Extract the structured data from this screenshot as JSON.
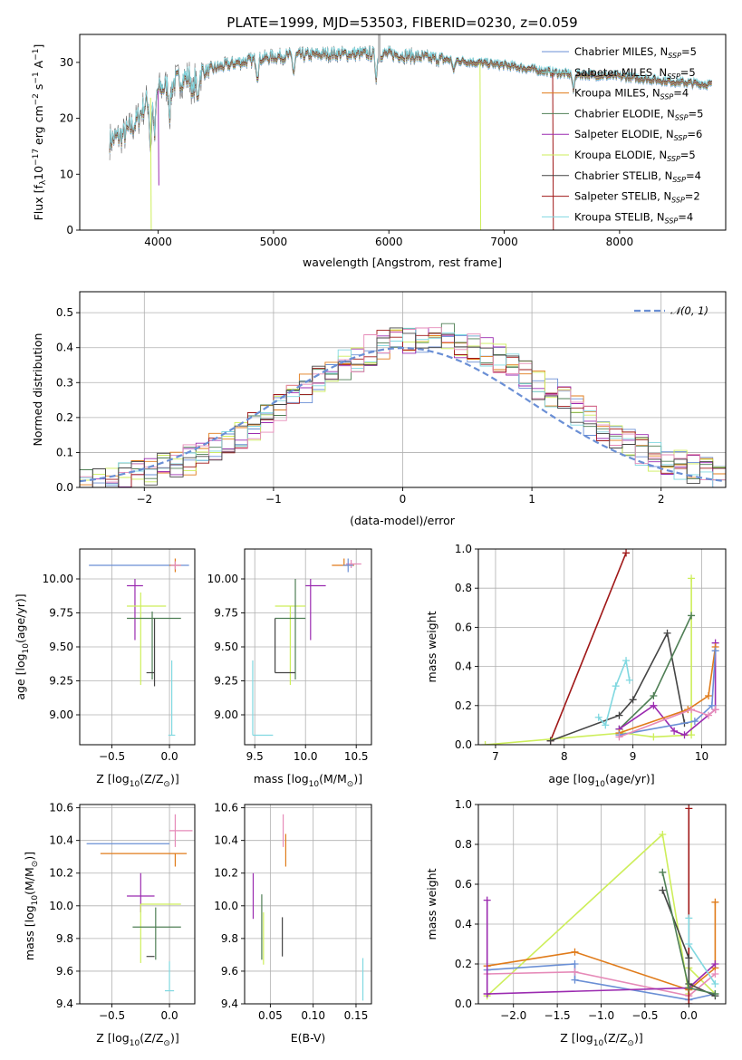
{
  "title": "PLATE=1999, MJD=53503, FIBERID=0230, z=0.059",
  "colors": {
    "chabrier_miles": "#6a8fd5",
    "salpeter_miles": "#7fe0e0",
    "kroupa_miles": "#e07b1a",
    "chabrier_elodie": "#4f7f55",
    "salpeter_elodie": "#9b2bb0",
    "kroupa_elodie": "#cdee5a",
    "chabrier_stelib": "#444444",
    "salpeter_stelib": "#a01818",
    "kroupa_stelib": "#80d8e0",
    "pink": "#e68ab8",
    "grid": "#b0b0b0"
  },
  "chart_data": [
    {
      "type": "line",
      "id": "spectrum",
      "xlabel": "wavelength [Angstrom, rest frame]",
      "ylabel_parts": [
        "Flux [f",
        "λ",
        "10",
        "−17",
        " erg cm",
        "−2",
        " s",
        "−1",
        " A",
        "−1",
        "]"
      ],
      "xlim": [
        3320,
        8920
      ],
      "ylim": [
        0,
        35
      ],
      "xticks": [
        4000,
        5000,
        6000,
        7000,
        8000
      ],
      "yticks": [
        0,
        10,
        20,
        30
      ],
      "legend_position": "top-right",
      "series": [
        {
          "name": "Chabrier MILES",
          "nssp": "5",
          "color": "#6a8fd5"
        },
        {
          "name": "Salpeter MILES",
          "nssp": "5",
          "color": "#7fe0e0"
        },
        {
          "name": "Kroupa MILES",
          "nssp": "4",
          "color": "#e07b1a"
        },
        {
          "name": "Chabrier ELODIE",
          "nssp": "5",
          "color": "#4f7f55"
        },
        {
          "name": "Salpeter ELODIE",
          "nssp": "6",
          "color": "#9b2bb0"
        },
        {
          "name": "Kroupa ELODIE",
          "nssp": "5",
          "color": "#cdee5a"
        },
        {
          "name": "Chabrier STELIB",
          "nssp": "4",
          "color": "#444444"
        },
        {
          "name": "Salpeter STELIB",
          "nssp": "2",
          "color": "#a01818"
        },
        {
          "name": "Kroupa STELIB",
          "nssp": "4",
          "color": "#80d8e0"
        }
      ],
      "nssp_label": "N",
      "nssp_sub": "SSP",
      "continuum": [
        [
          3580,
          16
        ],
        [
          3700,
          17
        ],
        [
          3800,
          19
        ],
        [
          3900,
          23
        ],
        [
          4000,
          25
        ],
        [
          4100,
          26
        ],
        [
          4200,
          27
        ],
        [
          4300,
          27.5
        ],
        [
          4500,
          29
        ],
        [
          4700,
          30
        ],
        [
          5000,
          31
        ],
        [
          5500,
          31.5
        ],
        [
          6000,
          31.5
        ],
        [
          6500,
          30.5
        ],
        [
          7000,
          29.5
        ],
        [
          7500,
          28
        ],
        [
          8000,
          27.5
        ],
        [
          8500,
          26.5
        ],
        [
          8800,
          26
        ]
      ],
      "features": [
        {
          "x": 3934,
          "y": 0,
          "color": "#cdee5a"
        },
        {
          "x": 4000,
          "y": 8,
          "color": "#9b2bb0"
        },
        {
          "x": 6790,
          "y": 0,
          "color": "#cdee5a"
        },
        {
          "x": 7420,
          "y": 0,
          "color": "#a01818"
        }
      ]
    },
    {
      "type": "step",
      "id": "residuals",
      "xlabel": "(data-model)/error",
      "ylabel": "Normed distribution",
      "xlim": [
        -2.5,
        2.5
      ],
      "ylim": [
        0,
        0.56
      ],
      "xticks": [
        -2,
        -1,
        0,
        1,
        2
      ],
      "yticks": [
        0.0,
        0.1,
        0.2,
        0.3,
        0.4,
        0.5
      ],
      "gaussian_legend": "𝒩(0, 1)",
      "gaussian_color": "#6a8fd5",
      "legend_position": "top-right"
    },
    {
      "type": "errorbar",
      "id": "age_vs_Z",
      "xlabel": "Z [log",
      "xlabel_parts": [
        "Z [log",
        "10",
        "(Z/Z",
        "⊙",
        ")]"
      ],
      "ylabel_parts": [
        "age  [log",
        "10",
        "(age/yr)]"
      ],
      "xlim": [
        -0.78,
        0.22
      ],
      "ylim": [
        8.78,
        10.22
      ],
      "xticks": [
        -0.5,
        0.0
      ],
      "yticks": [
        9.0,
        9.25,
        9.5,
        9.75,
        10.0
      ],
      "points": [
        {
          "x": -0.05,
          "xerr": [
            0.65,
            0.22
          ],
          "y": 10.1,
          "yerr": [
            0.0,
            0.0
          ],
          "color": "#6a8fd5"
        },
        {
          "x": 0.05,
          "xerr": [
            0.05,
            0.05
          ],
          "y": 10.1,
          "yerr": [
            0.05,
            0.05
          ],
          "color": "#e07b1a"
        },
        {
          "x": 0.05,
          "xerr": [
            0.04,
            0.05
          ],
          "y": 10.1,
          "yerr": [
            0.03,
            0.03
          ],
          "color": "#e68ab8"
        },
        {
          "x": -0.3,
          "xerr": [
            0.07,
            0.07
          ],
          "y": 9.95,
          "yerr": [
            0.4,
            0.05
          ],
          "color": "#9b2bb0"
        },
        {
          "x": -0.25,
          "xerr": [
            0.12,
            0.22
          ],
          "y": 9.8,
          "yerr": [
            0.58,
            0.1
          ],
          "color": "#cdee5a"
        },
        {
          "x": -0.15,
          "xerr": [
            0.22,
            0.25
          ],
          "y": 9.71,
          "yerr": [
            0.45,
            0.05
          ],
          "color": "#4f7f55"
        },
        {
          "x": -0.13,
          "xerr": [
            0.07,
            0.0
          ],
          "y": 9.31,
          "yerr": [
            0.1,
            0.4
          ],
          "color": "#444444"
        },
        {
          "x": 0.02,
          "xerr": [
            0.03,
            0.03
          ],
          "y": 8.85,
          "yerr": [
            0.0,
            0.55
          ],
          "color": "#80d8e0"
        }
      ]
    },
    {
      "type": "errorbar",
      "id": "age_vs_mass",
      "xlabel_parts": [
        "mass [log",
        "10",
        "(M/M",
        "⊙",
        ")]"
      ],
      "xlim": [
        9.4,
        10.65
      ],
      "ylim": [
        8.78,
        10.22
      ],
      "xticks": [
        9.5,
        10.0,
        10.5
      ],
      "yticks": [
        9.0,
        9.25,
        9.5,
        9.75,
        10.0
      ],
      "points": [
        {
          "x": 10.38,
          "xerr": [
            0.12,
            0.1
          ],
          "y": 10.1,
          "yerr": [
            0.0,
            0.05
          ],
          "color": "#e07b1a"
        },
        {
          "x": 10.45,
          "xerr": [
            0.05,
            0.1
          ],
          "y": 10.11,
          "yerr": [
            0.03,
            0.03
          ],
          "color": "#e68ab8"
        },
        {
          "x": 10.42,
          "xerr": [
            0.05,
            0.05
          ],
          "y": 10.1,
          "yerr": [
            0.05,
            0.05
          ],
          "color": "#6a8fd5"
        },
        {
          "x": 10.05,
          "xerr": [
            0.05,
            0.15
          ],
          "y": 9.95,
          "yerr": [
            0.4,
            0.05
          ],
          "color": "#9b2bb0"
        },
        {
          "x": 9.85,
          "xerr": [
            0.15,
            0.15
          ],
          "y": 9.8,
          "yerr": [
            0.58,
            0.0
          ],
          "color": "#cdee5a"
        },
        {
          "x": 9.9,
          "xerr": [
            0.2,
            0.1
          ],
          "y": 9.71,
          "yerr": [
            0.45,
            0.29
          ],
          "color": "#4f7f55"
        },
        {
          "x": 9.7,
          "xerr": [
            0.0,
            0.2
          ],
          "y": 9.31,
          "yerr": [
            0.0,
            0.4
          ],
          "color": "#444444"
        },
        {
          "x": 9.48,
          "xerr": [
            0.0,
            0.2
          ],
          "y": 8.85,
          "yerr": [
            0.0,
            0.55
          ],
          "color": "#80d8e0"
        }
      ]
    },
    {
      "type": "line",
      "id": "weight_vs_age",
      "xlabel_parts": [
        "age  [log",
        "10",
        "(age/yr)]"
      ],
      "ylabel": "mass weight",
      "xlim": [
        6.75,
        10.35
      ],
      "ylim": [
        0,
        1
      ],
      "xticks": [
        7,
        8,
        9,
        10
      ],
      "yticks": [
        0.0,
        0.2,
        0.4,
        0.6,
        0.8,
        1.0
      ],
      "series": [
        {
          "color": "#a01818",
          "x": [
            7.8,
            8.9
          ],
          "y": [
            0.02,
            0.98
          ]
        },
        {
          "color": "#cdee5a",
          "x": [
            6.85,
            8.85,
            9.3,
            9.85,
            9.85
          ],
          "y": [
            0.0,
            0.06,
            0.04,
            0.05,
            0.85
          ]
        },
        {
          "color": "#444444",
          "x": [
            7.8,
            8.8,
            9.0,
            9.5,
            9.75
          ],
          "y": [
            0.02,
            0.15,
            0.23,
            0.57,
            0.11
          ]
        },
        {
          "color": "#4f7f55",
          "x": [
            8.8,
            9.3,
            9.85
          ],
          "y": [
            0.08,
            0.25,
            0.66
          ]
        },
        {
          "color": "#80d8e0",
          "x": [
            8.5,
            8.6,
            8.75,
            8.9,
            8.95
          ],
          "y": [
            0.14,
            0.1,
            0.3,
            0.43,
            0.33
          ]
        },
        {
          "color": "#9b2bb0",
          "x": [
            8.8,
            9.3,
            9.6,
            9.75,
            10.2,
            10.2
          ],
          "y": [
            0.08,
            0.2,
            0.07,
            0.05,
            0.18,
            0.52
          ]
        },
        {
          "color": "#e07b1a",
          "x": [
            8.8,
            9.8,
            10.1,
            10.2
          ],
          "y": [
            0.06,
            0.18,
            0.25,
            0.5
          ]
        },
        {
          "color": "#6a8fd5",
          "x": [
            8.8,
            9.9,
            10.15,
            10.2
          ],
          "y": [
            0.05,
            0.12,
            0.2,
            0.48
          ]
        },
        {
          "color": "#e68ab8",
          "x": [
            8.8,
            9.85,
            10.1,
            10.2
          ],
          "y": [
            0.04,
            0.18,
            0.15,
            0.18
          ]
        }
      ]
    },
    {
      "type": "errorbar",
      "id": "mass_vs_Z",
      "xlabel_parts": [
        "Z [log",
        "10",
        "(Z/Z",
        "⊙",
        ")]"
      ],
      "ylabel_parts": [
        "mass [log",
        "10",
        "(M/M",
        "⊙",
        ")]"
      ],
      "xlim": [
        -0.78,
        0.22
      ],
      "ylim": [
        9.4,
        10.62
      ],
      "xticks": [
        -0.5,
        0.0
      ],
      "yticks": [
        9.4,
        9.6,
        9.8,
        10.0,
        10.2,
        10.4,
        10.6
      ],
      "points": [
        {
          "x": 0.05,
          "xerr": [
            0.05,
            0.15
          ],
          "y": 10.46,
          "yerr": [
            0.1,
            0.1
          ],
          "color": "#e68ab8"
        },
        {
          "x": 0.0,
          "xerr": [
            0.72,
            0.0
          ],
          "y": 10.38,
          "yerr": [
            0.0,
            0.0
          ],
          "color": "#6a8fd5"
        },
        {
          "x": 0.05,
          "xerr": [
            0.65,
            0.1
          ],
          "y": 10.32,
          "yerr": [
            0.08,
            0.0
          ],
          "color": "#e07b1a"
        },
        {
          "x": -0.25,
          "xerr": [
            0.12,
            0.12
          ],
          "y": 10.06,
          "yerr": [
            0.1,
            0.14
          ],
          "color": "#9b2bb0"
        },
        {
          "x": -0.25,
          "xerr": [
            0.0,
            0.35
          ],
          "y": 10.01,
          "yerr": [
            0.36,
            0.0
          ],
          "color": "#cdee5a"
        },
        {
          "x": -0.12,
          "xerr": [
            0.2,
            0.22
          ],
          "y": 9.87,
          "yerr": [
            0.2,
            0.12
          ],
          "color": "#4f7f55"
        },
        {
          "x": -0.13,
          "xerr": [
            0.07,
            0.0
          ],
          "y": 9.69,
          "yerr": [
            0.0,
            0.0
          ],
          "color": "#444444"
        },
        {
          "x": 0.0,
          "xerr": [
            0.04,
            0.04
          ],
          "y": 9.48,
          "yerr": [
            0.0,
            0.18
          ],
          "color": "#80d8e0"
        }
      ]
    },
    {
      "type": "errorbar",
      "id": "mass_vs_EBV",
      "xlabel": "E(B-V)",
      "xlim": [
        0.02,
        0.168
      ],
      "ylim": [
        9.4,
        10.62
      ],
      "xticks": [
        0.05,
        0.1,
        0.15
      ],
      "xtick_labels": [
        "0.05",
        "0.10",
        "0.15"
      ],
      "yticks": [
        9.4,
        9.6,
        9.8,
        10.0,
        10.2,
        10.4,
        10.6
      ],
      "points": [
        {
          "x": 0.065,
          "y": 10.46,
          "yerr": [
            0.1,
            0.1
          ],
          "color": "#e68ab8"
        },
        {
          "x": 0.068,
          "y": 10.32,
          "yerr": [
            0.08,
            0.12
          ],
          "color": "#e07b1a"
        },
        {
          "x": 0.03,
          "y": 10.06,
          "yerr": [
            0.14,
            0.14
          ],
          "color": "#9b2bb0"
        },
        {
          "x": 0.04,
          "y": 9.87,
          "yerr": [
            0.2,
            0.2
          ],
          "color": "#4f7f55"
        },
        {
          "x": 0.042,
          "y": 9.8,
          "yerr": [
            0.16,
            0.16
          ],
          "color": "#cdee5a"
        },
        {
          "x": 0.064,
          "y": 9.81,
          "yerr": [
            0.12,
            0.12
          ],
          "color": "#444444"
        },
        {
          "x": 0.158,
          "y": 9.55,
          "yerr": [
            0.13,
            0.13
          ],
          "color": "#80d8e0"
        }
      ]
    },
    {
      "type": "line",
      "id": "weight_vs_Z",
      "xlabel_parts": [
        "Z [log",
        "10",
        "(Z/Z",
        "⊙",
        ")]"
      ],
      "ylabel": "mass weight",
      "xlim": [
        -2.4,
        0.42
      ],
      "ylim": [
        0,
        1
      ],
      "xticks": [
        -2.0,
        -1.5,
        -1.0,
        -0.5,
        0.0
      ],
      "yticks": [
        0.0,
        0.2,
        0.4,
        0.6,
        0.8,
        1.0
      ],
      "series": [
        {
          "color": "#cdee5a",
          "x": [
            -2.3,
            -0.3,
            0.0,
            0.0,
            0.3
          ],
          "y": [
            0.04,
            0.85,
            0.05,
            0.18,
            0.05
          ]
        },
        {
          "color": "#e07b1a",
          "x": [
            -2.3,
            -1.3,
            0.0,
            0.3,
            0.3
          ],
          "y": [
            0.19,
            0.26,
            0.07,
            0.18,
            0.51
          ]
        },
        {
          "color": "#6a8fd5",
          "x": [
            -2.3,
            -1.3,
            -1.3,
            0.0,
            0.3
          ],
          "y": [
            0.17,
            0.2,
            0.12,
            0.02,
            0.05
          ]
        },
        {
          "color": "#e68ab8",
          "x": [
            -2.3,
            -1.3,
            0.0,
            0.3
          ],
          "y": [
            0.15,
            0.16,
            0.04,
            0.15
          ]
        },
        {
          "color": "#9b2bb0",
          "x": [
            -2.3,
            -2.3,
            -2.3,
            0.0,
            0.3
          ],
          "y": [
            0.52,
            0.05,
            0.05,
            0.08,
            0.2
          ]
        },
        {
          "color": "#a01818",
          "x": [
            0.0,
            0.0
          ],
          "y": [
            0.0,
            0.98
          ]
        },
        {
          "color": "#444444",
          "x": [
            -0.3,
            0.0,
            0.0,
            0.3
          ],
          "y": [
            0.57,
            0.23,
            0.1,
            0.04
          ]
        },
        {
          "color": "#4f7f55",
          "x": [
            -0.3,
            0.0,
            0.3
          ],
          "y": [
            0.66,
            0.08,
            0.05
          ]
        },
        {
          "color": "#80d8e0",
          "x": [
            0.0,
            0.0,
            0.3
          ],
          "y": [
            0.43,
            0.3,
            0.1
          ]
        }
      ]
    }
  ]
}
